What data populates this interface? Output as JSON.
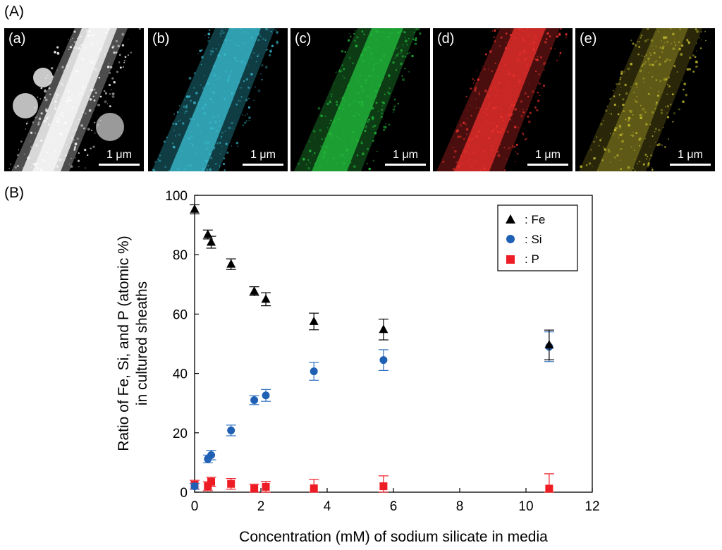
{
  "panel_labels": {
    "A": "(A)",
    "B": "(B)"
  },
  "micrographs": [
    {
      "label": "(a)",
      "scale": "1 μm",
      "color": "#e8e8e8",
      "channel": "HAADF-STEM"
    },
    {
      "label": "(b)",
      "scale": "1 μm",
      "color": "#38b8cc",
      "channel": "map-cyan"
    },
    {
      "label": "(c)",
      "scale": "1 μm",
      "color": "#22b83a",
      "channel": "map-green"
    },
    {
      "label": "(d)",
      "scale": "1 μm",
      "color": "#e8302c",
      "channel": "map-red"
    },
    {
      "label": "(e)",
      "scale": "1 μm",
      "color": "#c8c030",
      "channel": "map-yellow"
    }
  ],
  "chart_data": {
    "type": "scatter",
    "xlabel": "Concentration (mM) of sodium silicate in media",
    "ylabel_lines": [
      "Ratio of Fe, Si, and P (atomic %)",
      "in cultured sheaths"
    ],
    "xlim": [
      0,
      12
    ],
    "ylim": [
      0,
      100
    ],
    "xticks": [
      0,
      2,
      4,
      6,
      8,
      10,
      12
    ],
    "yticks": [
      0,
      20,
      40,
      60,
      80,
      100
    ],
    "legend_position": "top-right",
    "series": [
      {
        "name": ": Fe",
        "marker": "triangle",
        "color": "#000000",
        "x": [
          0,
          0.4,
          0.5,
          1.1,
          1.8,
          2.15,
          3.6,
          5.7,
          10.7
        ],
        "y": [
          95.3,
          86.8,
          84.2,
          76.8,
          67.7,
          65.0,
          57.5,
          54.8,
          49.6
        ],
        "err": [
          1.5,
          1.5,
          2.0,
          1.8,
          1.5,
          2.2,
          2.8,
          3.5,
          5.0
        ]
      },
      {
        "name": ": Si",
        "marker": "circle",
        "color": "#1f5fb4",
        "x": [
          0,
          0.4,
          0.5,
          1.1,
          1.8,
          2.15,
          3.6,
          5.7,
          10.7
        ],
        "y": [
          2.0,
          11.2,
          12.5,
          20.8,
          31.0,
          32.6,
          40.7,
          44.5,
          49.0
        ],
        "err": [
          1.0,
          1.3,
          1.6,
          1.8,
          1.5,
          2.0,
          3.0,
          3.5,
          5.0
        ]
      },
      {
        "name": ": P",
        "marker": "square",
        "color": "#ee1c24",
        "x": [
          0,
          0.4,
          0.5,
          1.1,
          1.8,
          2.15,
          3.6,
          5.7,
          10.7
        ],
        "y": [
          2.5,
          2.0,
          3.5,
          2.8,
          1.2,
          1.8,
          1.3,
          2.0,
          1.2
        ],
        "err": [
          1.5,
          1.5,
          1.5,
          1.8,
          1.5,
          1.8,
          3.0,
          3.5,
          5.0
        ]
      }
    ]
  }
}
